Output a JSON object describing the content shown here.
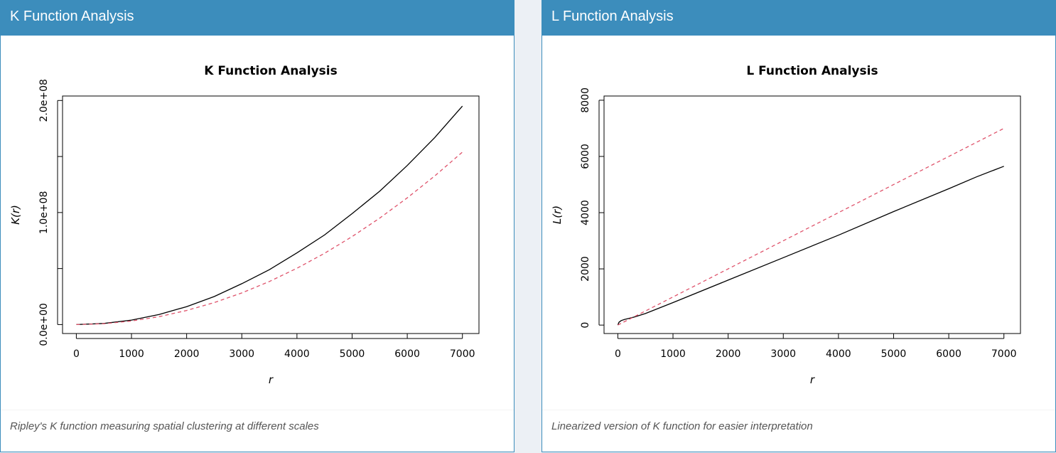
{
  "panels": [
    {
      "header_title": "K Function Analysis",
      "footer_text": "Ripley's K function measuring spatial clustering at different scales"
    },
    {
      "header_title": "L Function Analysis",
      "footer_text": "Linearized version of K function for easier interpretation"
    }
  ],
  "chart_data": [
    {
      "type": "line",
      "title": "K Function Analysis",
      "xlabel": "r",
      "ylabel": "K(r)",
      "xlim": [
        -250,
        7300
      ],
      "ylim": [
        -8000000,
        204000000
      ],
      "x_ticks": [
        0,
        1000,
        2000,
        3000,
        4000,
        5000,
        6000,
        7000
      ],
      "x_tick_labels": [
        "0",
        "1000",
        "2000",
        "3000",
        "4000",
        "5000",
        "6000",
        "7000"
      ],
      "y_ticks": [
        0,
        50000000,
        100000000,
        150000000,
        200000000
      ],
      "y_tick_labels": [
        "0.0e+00",
        "",
        "1.0e+08",
        "",
        "2.0e+08"
      ],
      "grid": false,
      "series": [
        {
          "style": "solid",
          "color": "#000000",
          "x": [
            0,
            500,
            1000,
            1500,
            2000,
            2500,
            3000,
            3500,
            4000,
            4500,
            5000,
            5500,
            6000,
            6500,
            7000
          ],
          "y": [
            0,
            1000000,
            4000000,
            9000000,
            16000000,
            25000000,
            36500000,
            49000000,
            64000000,
            80000000,
            99000000,
            119000000,
            142000000,
            167000000,
            195000000
          ]
        },
        {
          "style": "dashed",
          "color": "#df536b",
          "x": [
            0,
            500,
            1000,
            1500,
            2000,
            2500,
            3000,
            3500,
            4000,
            4500,
            5000,
            5500,
            6000,
            6500,
            7000
          ],
          "y": [
            0,
            785000,
            3140000,
            7070000,
            12570000,
            19630000,
            28270000,
            38480000,
            50270000,
            63620000,
            78540000,
            95030000,
            113100000,
            132730000,
            153940000
          ]
        }
      ]
    },
    {
      "type": "line",
      "title": "L Function Analysis",
      "xlabel": "r",
      "ylabel": "L(r)",
      "xlim": [
        -250,
        7300
      ],
      "ylim": [
        -300,
        8150
      ],
      "x_ticks": [
        0,
        1000,
        2000,
        3000,
        4000,
        5000,
        6000,
        7000
      ],
      "x_tick_labels": [
        "0",
        "1000",
        "2000",
        "3000",
        "4000",
        "5000",
        "6000",
        "7000"
      ],
      "y_ticks": [
        0,
        2000,
        4000,
        6000,
        8000
      ],
      "y_tick_labels": [
        "0",
        "2000",
        "4000",
        "6000",
        "8000"
      ],
      "grid": false,
      "series": [
        {
          "style": "solid",
          "color": "#000000",
          "x": [
            0,
            20,
            60,
            120,
            200,
            300,
            500,
            1000,
            2000,
            3000,
            4000,
            5000,
            6000,
            6500,
            7000
          ],
          "y": [
            0,
            100,
            160,
            200,
            240,
            290,
            410,
            800,
            1600,
            2400,
            3200,
            4040,
            4850,
            5270,
            5650
          ]
        },
        {
          "style": "dashed",
          "color": "#df536b",
          "x": [
            0,
            7000
          ],
          "y": [
            0,
            7000
          ]
        }
      ]
    }
  ]
}
